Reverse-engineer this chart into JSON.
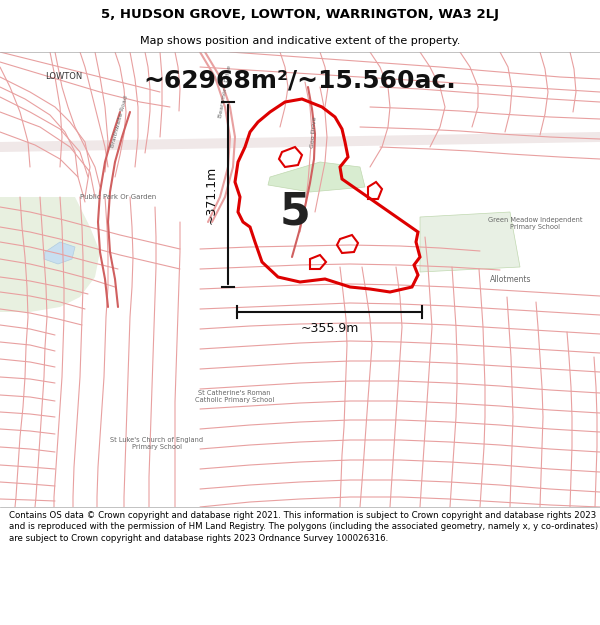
{
  "title_line1": "5, HUDSON GROVE, LOWTON, WARRINGTON, WA3 2LJ",
  "title_line2": "Map shows position and indicative extent of the property.",
  "area_text": "~62968m²/~15.560ac.",
  "label_5": "5",
  "dim_vertical": "~371.1m",
  "dim_horizontal": "~355.9m",
  "footer": "Contains OS data © Crown copyright and database right 2021. This information is subject to Crown copyright and database rights 2023 and is reproduced with the permission of HM Land Registry. The polygons (including the associated geometry, namely x, y co-ordinates) are subject to Crown copyright and database rights 2023 Ordnance Survey 100026316.",
  "map_bg": "#f7f4f2",
  "road_color": "#e8a0a0",
  "road_color_dark": "#d06060",
  "property_fill": "none",
  "property_edge": "#dd0000",
  "property_edge_width": 2.2,
  "dim_line_color": "#111111",
  "title_bg": "#ffffff",
  "footer_bg": "#ffffff",
  "green_park_color": "#e8f0e0",
  "green_allot_color": "#e8f0e4",
  "white_area": "#ffffff",
  "grey_area": "#eeeeee",
  "building_fill": "#f2ece8",
  "building_edge": "#ccaaaa",
  "label_color_dark": "#555555",
  "label_color_map": "#666666"
}
